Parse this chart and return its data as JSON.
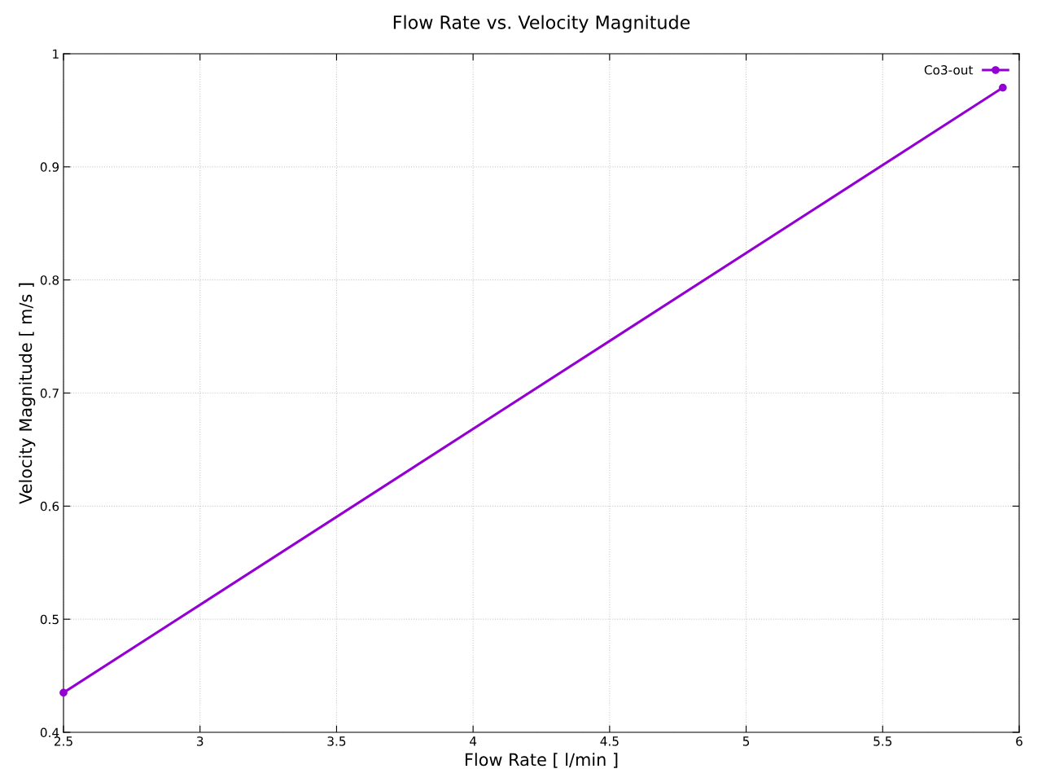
{
  "chart_data": {
    "type": "line",
    "title": "Flow Rate vs. Velocity Magnitude",
    "xlabel": "Flow Rate [ l/min ]",
    "ylabel": "Velocity Magnitude [ m/s ]",
    "x": [
      2.5,
      5.94
    ],
    "series": [
      {
        "name": "Co3-out",
        "color": "#9400d3",
        "values": [
          0.435,
          0.97
        ]
      }
    ],
    "xlim": [
      2.5,
      6
    ],
    "xticks": [
      2.5,
      3,
      3.5,
      4,
      4.5,
      5,
      5.5,
      6
    ],
    "ylim": [
      0.4,
      1
    ],
    "yticks": [
      0.4,
      0.5,
      0.6,
      0.7,
      0.8,
      0.9,
      1
    ],
    "grid": true,
    "legend": "top right",
    "marker": "circle",
    "line_style": "solid"
  }
}
